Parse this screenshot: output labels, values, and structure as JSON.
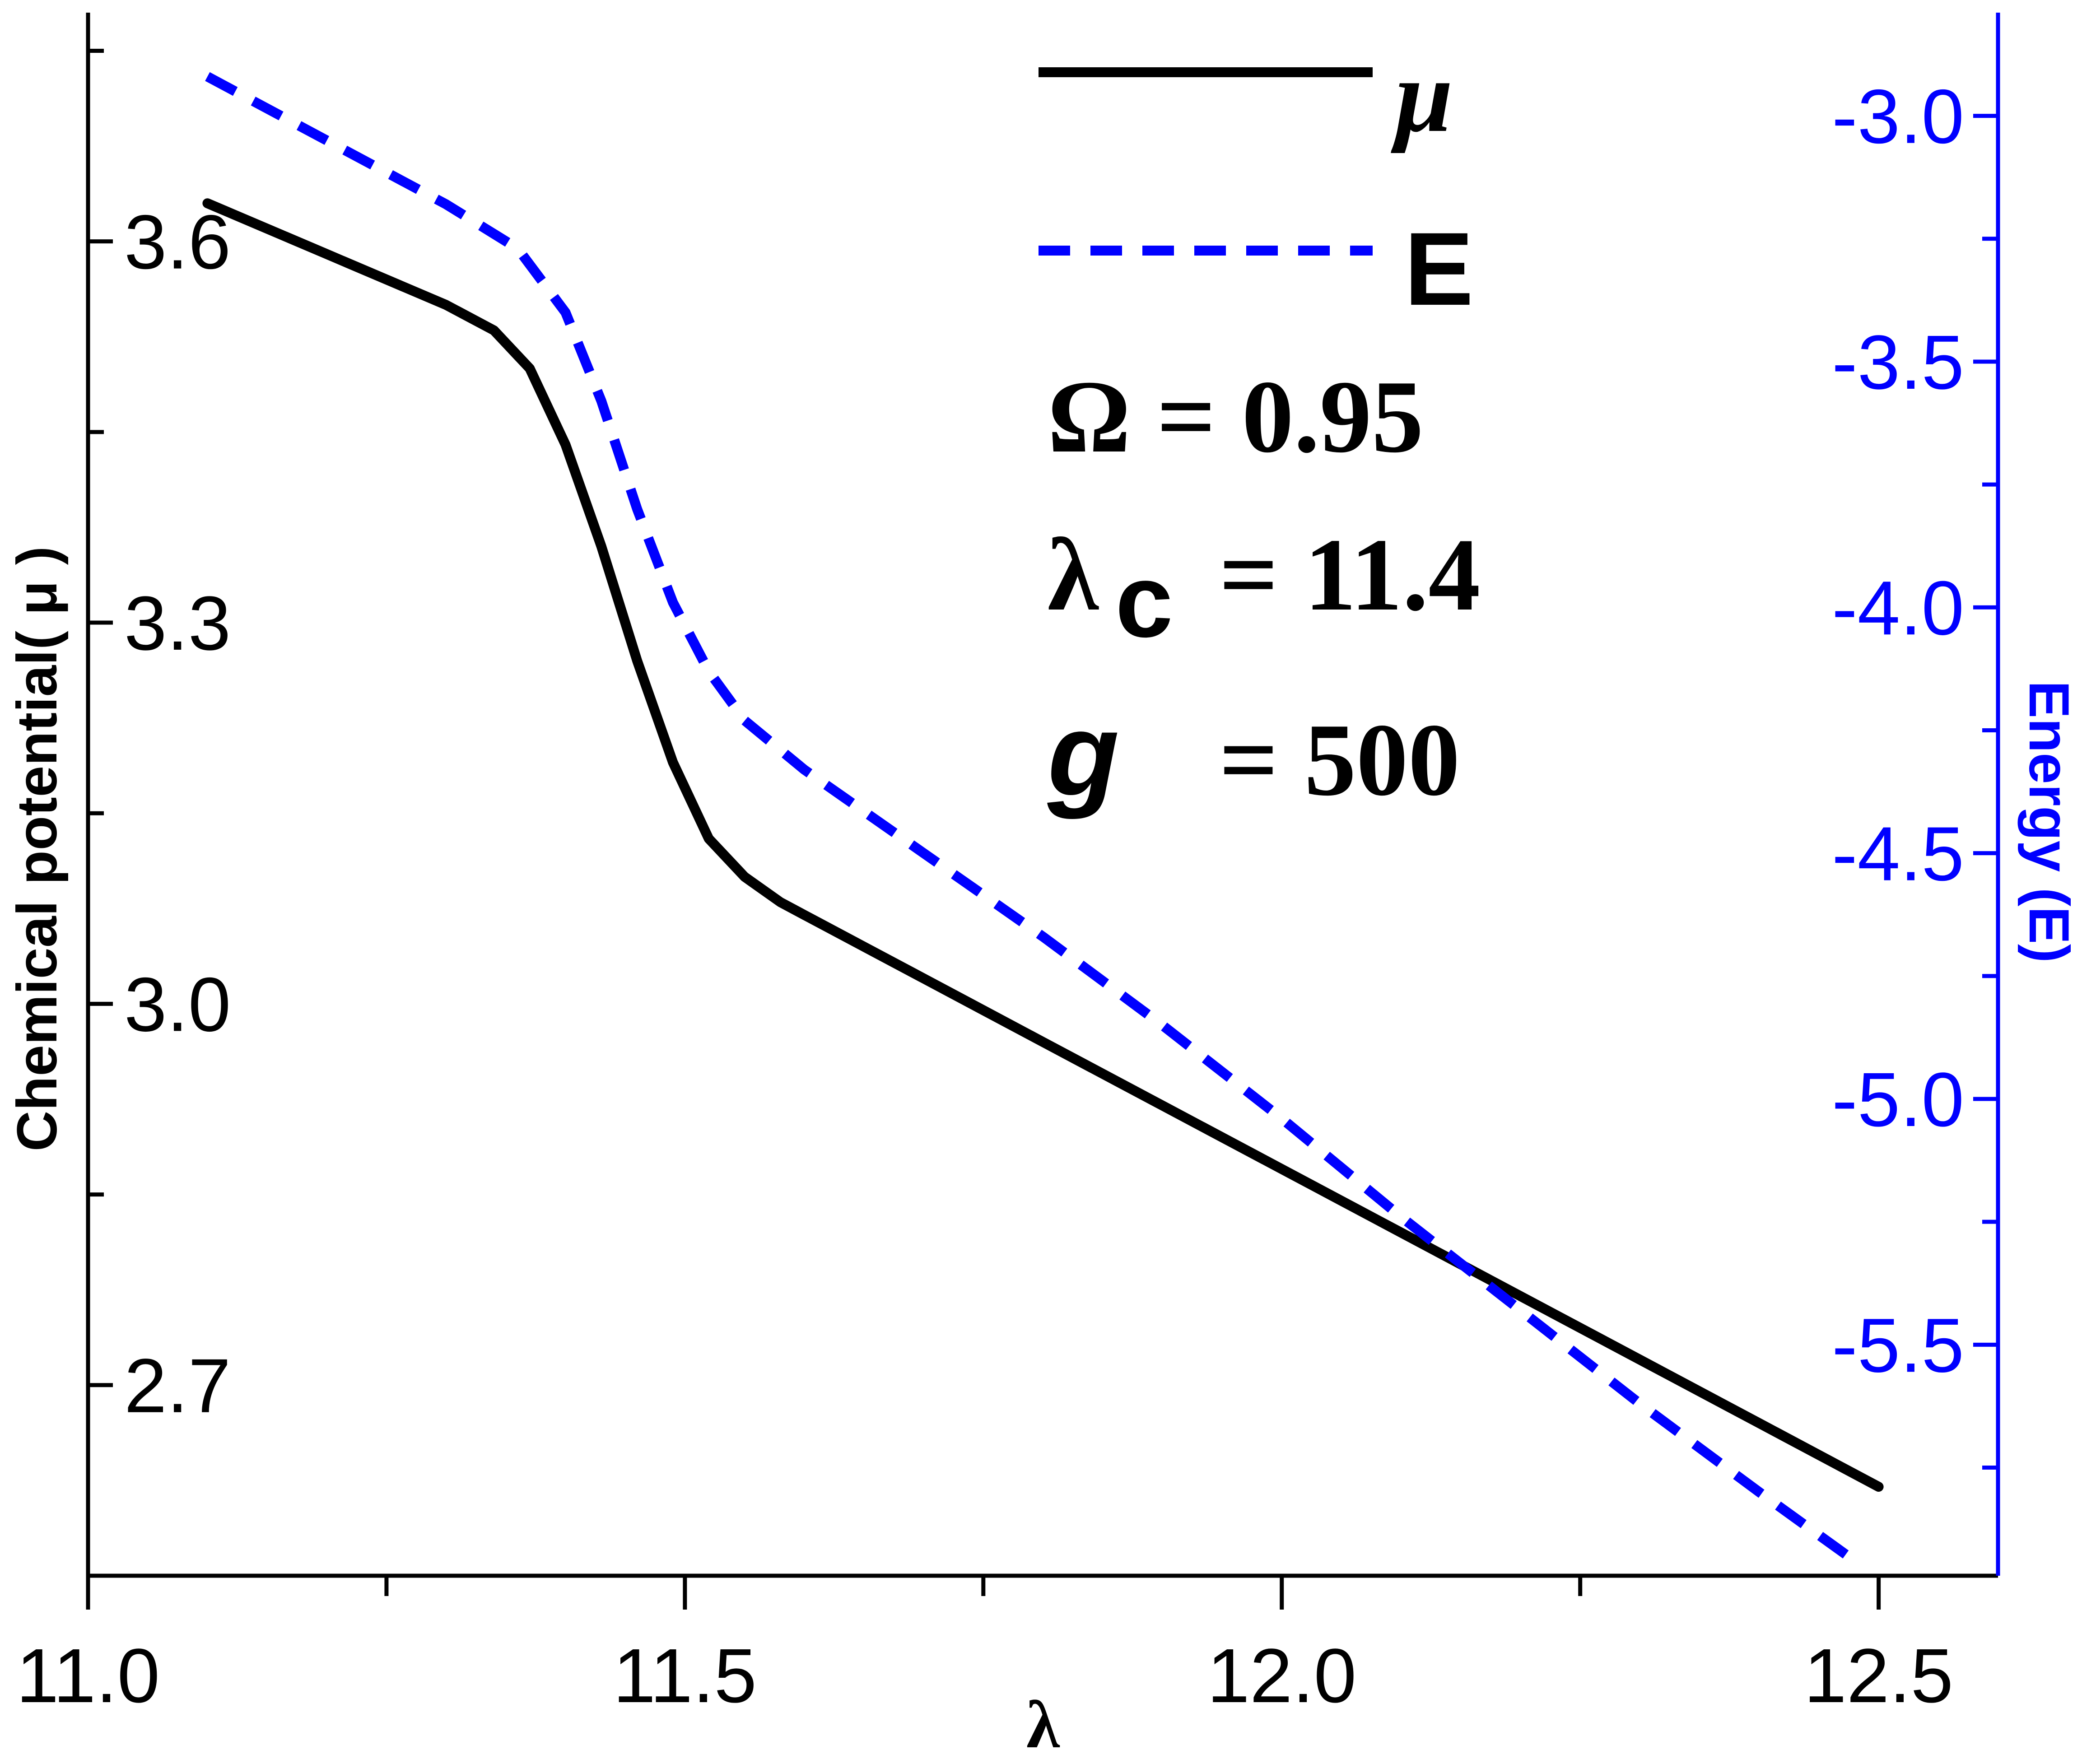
{
  "chart_data": {
    "type": "line",
    "xlabel": "λ",
    "ylabel_left": "Chemical potential( μ )",
    "ylabel_right": "Energy (E)",
    "xlim": [
      11.0,
      12.6
    ],
    "ylim_left": [
      2.55,
      3.78
    ],
    "ylim_right": [
      -5.97,
      -2.79
    ],
    "x_ticks": [
      "11.0",
      "11.5",
      "12.0",
      "12.5"
    ],
    "x_tick_values": [
      11.0,
      11.5,
      12.0,
      12.5
    ],
    "x_minor_tick_values": [
      11.25,
      11.75,
      12.25
    ],
    "y_left_ticks": [
      "3.6",
      "3.3",
      "3.0",
      "2.7"
    ],
    "y_left_tick_values": [
      3.6,
      3.3,
      3.0,
      2.7
    ],
    "y_left_minor_tick_values": [
      3.75,
      3.45,
      3.15,
      2.85,
      2.55
    ],
    "y_right_ticks": [
      "-3.0",
      "-3.5",
      "-4.0",
      "-4.5",
      "-5.0",
      "-5.5"
    ],
    "y_right_tick_values": [
      -3.0,
      -3.5,
      -4.0,
      -4.5,
      -5.0,
      -5.5
    ],
    "y_right_minor_tick_values": [
      -3.25,
      -3.75,
      -4.25,
      -4.75,
      -5.25,
      -5.75
    ],
    "series": [
      {
        "name": "μ",
        "axis": "left",
        "color": "#000000",
        "style": "solid",
        "x": [
          11.1,
          11.2,
          11.3,
          11.34,
          11.37,
          11.4,
          11.43,
          11.46,
          11.49,
          11.52,
          11.55,
          11.58,
          11.6,
          11.7,
          11.8,
          11.9,
          12.0,
          12.1,
          12.2,
          12.3,
          12.4,
          12.5
        ],
        "y": [
          3.63,
          3.59,
          3.55,
          3.53,
          3.5,
          3.44,
          3.36,
          3.27,
          3.19,
          3.13,
          3.1,
          3.08,
          3.07,
          3.02,
          2.97,
          2.92,
          2.87,
          2.82,
          2.77,
          2.72,
          2.67,
          2.62
        ]
      },
      {
        "name": "E",
        "axis": "right",
        "color": "#0000ff",
        "style": "dashed",
        "x": [
          11.1,
          11.2,
          11.3,
          11.36,
          11.4,
          11.43,
          11.46,
          11.49,
          11.52,
          11.55,
          11.6,
          11.7,
          11.8,
          11.9,
          12.0,
          12.1,
          12.2,
          12.3,
          12.4,
          12.48
        ],
        "y": [
          -2.92,
          -3.05,
          -3.18,
          -3.27,
          -3.4,
          -3.58,
          -3.8,
          -3.99,
          -4.13,
          -4.23,
          -4.33,
          -4.5,
          -4.67,
          -4.85,
          -5.04,
          -5.24,
          -5.43,
          -5.62,
          -5.8,
          -5.94
        ]
      }
    ],
    "legend_position": "top-right",
    "annotations": {
      "omega": "Ω = 0.95",
      "lambda_c_sym": "λ",
      "lambda_c_sub": "c",
      "lambda_c_val": "= 11.4",
      "g_sym": "g",
      "g_val": "= 500"
    },
    "colors": {
      "left_axis": "#000000",
      "right_axis": "#0000ff"
    }
  }
}
